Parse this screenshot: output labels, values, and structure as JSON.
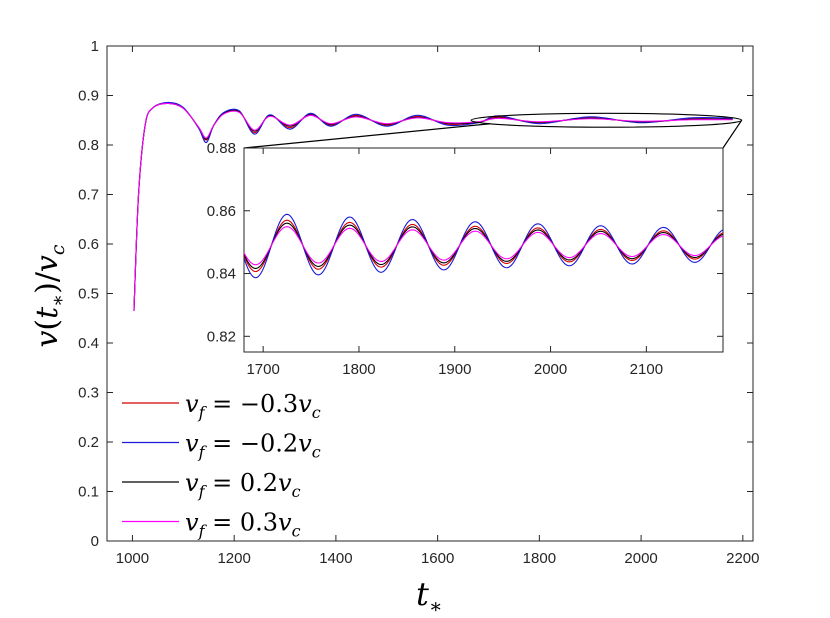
{
  "chart_data": [
    {
      "id": "main",
      "type": "line",
      "title": "",
      "xlabel": "t*",
      "ylabel": "v(t*)/v_c",
      "xlim": [
        950,
        2220
      ],
      "ylim": [
        0,
        1
      ],
      "xticks": [
        1000,
        1200,
        1400,
        1600,
        1800,
        2000,
        2200
      ],
      "yticks": [
        0,
        0.1,
        0.2,
        0.3,
        0.4,
        0.5,
        0.6,
        0.7,
        0.8,
        0.9,
        1
      ],
      "xtick_labels": [
        "1000",
        "1200",
        "1400",
        "1600",
        "1800",
        "2000",
        "2200"
      ],
      "ytick_labels": [
        "0",
        "0.1",
        "0.2",
        "0.3",
        "0.4",
        "0.5",
        "0.6",
        "0.7",
        "0.8",
        "0.9",
        "1"
      ],
      "grid": false,
      "legend_position": "bottom-left",
      "series": [
        {
          "name": "v_f = -0.3v_c",
          "color": "#d40000",
          "approx_points": [
            [
              1003,
              0.465
            ],
            [
              1012,
              0.7
            ],
            [
              1025,
              0.84
            ],
            [
              1040,
              0.875
            ],
            [
              1070,
              0.885
            ],
            [
              1100,
              0.875
            ],
            [
              1130,
              0.835
            ],
            [
              1145,
              0.81
            ],
            [
              1160,
              0.84
            ],
            [
              1180,
              0.865
            ],
            [
              1210,
              0.868
            ],
            [
              1240,
              0.825
            ],
            [
              1270,
              0.86
            ],
            [
              1310,
              0.835
            ],
            [
              1350,
              0.862
            ],
            [
              1390,
              0.84
            ],
            [
              1440,
              0.86
            ],
            [
              1500,
              0.84
            ],
            [
              1560,
              0.858
            ],
            [
              1620,
              0.842
            ],
            [
              1680,
              0.846
            ],
            [
              1720,
              0.857
            ],
            [
              1800,
              0.845
            ],
            [
              1900,
              0.855
            ],
            [
              2000,
              0.846
            ],
            [
              2100,
              0.853
            ],
            [
              2180,
              0.852
            ]
          ]
        },
        {
          "name": "v_f = -0.2v_c",
          "color": "#1a1adb",
          "approx_points": [
            [
              1003,
              0.465
            ],
            [
              1012,
              0.7
            ],
            [
              1025,
              0.84
            ],
            [
              1040,
              0.875
            ],
            [
              1070,
              0.886
            ],
            [
              1100,
              0.876
            ],
            [
              1130,
              0.834
            ],
            [
              1145,
              0.805
            ],
            [
              1160,
              0.84
            ],
            [
              1180,
              0.866
            ],
            [
              1210,
              0.869
            ],
            [
              1240,
              0.822
            ],
            [
              1270,
              0.861
            ],
            [
              1310,
              0.832
            ],
            [
              1350,
              0.864
            ],
            [
              1390,
              0.838
            ],
            [
              1440,
              0.862
            ],
            [
              1500,
              0.838
            ],
            [
              1560,
              0.86
            ],
            [
              1620,
              0.84
            ],
            [
              1680,
              0.845
            ],
            [
              1720,
              0.859
            ],
            [
              1800,
              0.843
            ],
            [
              1900,
              0.857
            ],
            [
              2000,
              0.845
            ],
            [
              2100,
              0.855
            ],
            [
              2180,
              0.854
            ]
          ]
        },
        {
          "name": "v_f = 0.2v_c",
          "color": "#000000",
          "approx_points": [
            [
              1003,
              0.465
            ],
            [
              1012,
              0.7
            ],
            [
              1025,
              0.84
            ],
            [
              1040,
              0.875
            ],
            [
              1070,
              0.884
            ],
            [
              1100,
              0.874
            ],
            [
              1130,
              0.836
            ],
            [
              1145,
              0.812
            ],
            [
              1160,
              0.84
            ],
            [
              1180,
              0.864
            ],
            [
              1210,
              0.867
            ],
            [
              1240,
              0.828
            ],
            [
              1270,
              0.859
            ],
            [
              1310,
              0.838
            ],
            [
              1350,
              0.861
            ],
            [
              1390,
              0.842
            ],
            [
              1440,
              0.858
            ],
            [
              1500,
              0.842
            ],
            [
              1560,
              0.856
            ],
            [
              1620,
              0.844
            ],
            [
              1680,
              0.846
            ],
            [
              1720,
              0.855
            ],
            [
              1800,
              0.846
            ],
            [
              1900,
              0.854
            ],
            [
              2000,
              0.847
            ],
            [
              2100,
              0.852
            ],
            [
              2180,
              0.852
            ]
          ]
        },
        {
          "name": "v_f = 0.3v_c",
          "color": "#ff00ff",
          "approx_points": [
            [
              1003,
              0.465
            ],
            [
              1012,
              0.7
            ],
            [
              1025,
              0.84
            ],
            [
              1040,
              0.875
            ],
            [
              1070,
              0.884
            ],
            [
              1100,
              0.874
            ],
            [
              1130,
              0.836
            ],
            [
              1145,
              0.814
            ],
            [
              1160,
              0.84
            ],
            [
              1180,
              0.863
            ],
            [
              1210,
              0.866
            ],
            [
              1240,
              0.83
            ],
            [
              1270,
              0.858
            ],
            [
              1310,
              0.84
            ],
            [
              1350,
              0.86
            ],
            [
              1390,
              0.843
            ],
            [
              1440,
              0.857
            ],
            [
              1500,
              0.843
            ],
            [
              1560,
              0.855
            ],
            [
              1620,
              0.845
            ],
            [
              1680,
              0.847
            ],
            [
              1720,
              0.854
            ],
            [
              1800,
              0.847
            ],
            [
              1900,
              0.853
            ],
            [
              2000,
              0.848
            ],
            [
              2100,
              0.851
            ],
            [
              2180,
              0.851
            ]
          ]
        }
      ]
    },
    {
      "id": "inset",
      "type": "line",
      "title": "",
      "xlabel": "",
      "ylabel": "",
      "xlim": [
        1680,
        2180
      ],
      "ylim": [
        0.815,
        0.88
      ],
      "xticks": [
        1700,
        1800,
        1900,
        2000,
        2100
      ],
      "yticks": [
        0.82,
        0.84,
        0.86,
        0.88
      ],
      "xtick_labels": [
        "1700",
        "1800",
        "1900",
        "2000",
        "2100"
      ],
      "ytick_labels": [
        "0.82",
        "0.84",
        "0.86",
        "0.88"
      ],
      "grid": false,
      "zoom_region": {
        "x": [
          1660,
          2180
        ],
        "y": [
          0.84,
          0.86
        ]
      },
      "oscillation": {
        "mean": 0.849,
        "period_t": 65.5,
        "first_peak_t": 1725,
        "decay_per_t": 0.0014
      },
      "series": [
        {
          "name": "v_f = -0.3v_c",
          "color": "#d40000",
          "amplitude": 0.0085
        },
        {
          "name": "v_f = -0.2v_c",
          "color": "#1a1adb",
          "amplitude": 0.0105
        },
        {
          "name": "v_f = 0.2v_c",
          "color": "#000000",
          "amplitude": 0.0075
        },
        {
          "name": "v_f = 0.3v_c",
          "color": "#ff00ff",
          "amplitude": 0.0063
        }
      ]
    }
  ],
  "legend": {
    "entries": [
      {
        "var": "v",
        "sub": "f",
        "eq": " = ",
        "coef": "−0.3",
        "unit": "v",
        "unit_sub": "c",
        "color": "#d40000"
      },
      {
        "var": "v",
        "sub": "f",
        "eq": " = ",
        "coef": "−0.2",
        "unit": "v",
        "unit_sub": "c",
        "color": "#1a1adb"
      },
      {
        "var": "v",
        "sub": "f",
        "eq": " = ",
        "coef": "0.2",
        "unit": "v",
        "unit_sub": "c",
        "color": "#000000"
      },
      {
        "var": "v",
        "sub": "f",
        "eq": " = ",
        "coef": "0.3",
        "unit": "v",
        "unit_sub": "c",
        "color": "#ff00ff"
      }
    ]
  },
  "labels": {
    "x_main": "t",
    "x_sub": "∗",
    "y_v": "v",
    "y_paren_open": "(",
    "y_t": "t",
    "y_star": "∗",
    "y_paren_close": ")",
    "y_slash": "/",
    "y_vc": "v",
    "y_c": "c"
  }
}
